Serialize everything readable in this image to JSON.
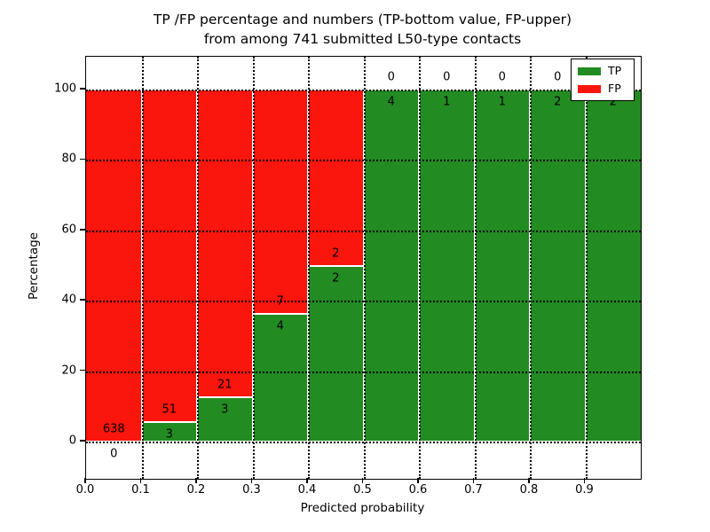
{
  "figure": {
    "title_line1": "TP /FP percentage and numbers (TP-bottom value, FP-upper)",
    "title_line2": "from among 741 submitted L50-type contacts",
    "xlabel": "Predicted probability",
    "ylabel": "Percentage"
  },
  "chart_data": {
    "type": "bar",
    "stacked": true,
    "percentage_axis": true,
    "title": "TP /FP percentage and numbers (TP-bottom value, FP-upper) from among 741 submitted L50-type contacts",
    "xlabel": "Predicted probability",
    "ylabel": "Percentage",
    "total_contacts": 741,
    "x_tick_labels": [
      "0.0",
      "0.1",
      "0.2",
      "0.3",
      "0.4",
      "0.5",
      "0.6",
      "0.7",
      "0.8",
      "0.9"
    ],
    "y_ticks": [
      0,
      20,
      40,
      60,
      80,
      100
    ],
    "xlim": [
      0.0,
      1.0
    ],
    "ylim": [
      -10.6,
      109.4
    ],
    "grid": true,
    "legend_position": "upper right",
    "colors": {
      "tp": "#228b22",
      "fp": "#fa150d"
    },
    "legend": [
      {
        "label": "TP",
        "color": "#228b22"
      },
      {
        "label": "FP",
        "color": "#fa150d"
      }
    ],
    "bins": [
      {
        "range": [
          0.0,
          0.1
        ],
        "tp": 0,
        "fp": 638,
        "tp_pct": 0.0
      },
      {
        "range": [
          0.1,
          0.2
        ],
        "tp": 3,
        "fp": 51,
        "tp_pct": 5.56
      },
      {
        "range": [
          0.2,
          0.3
        ],
        "tp": 3,
        "fp": 21,
        "tp_pct": 12.5
      },
      {
        "range": [
          0.3,
          0.4
        ],
        "tp": 4,
        "fp": 7,
        "tp_pct": 36.36
      },
      {
        "range": [
          0.4,
          0.5
        ],
        "tp": 2,
        "fp": 2,
        "tp_pct": 50.0
      },
      {
        "range": [
          0.5,
          0.6
        ],
        "tp": 4,
        "fp": 0,
        "tp_pct": 100.0
      },
      {
        "range": [
          0.6,
          0.7
        ],
        "tp": 1,
        "fp": 0,
        "tp_pct": 100.0
      },
      {
        "range": [
          0.7,
          0.8
        ],
        "tp": 1,
        "fp": 0,
        "tp_pct": 100.0
      },
      {
        "range": [
          0.8,
          0.9
        ],
        "tp": 2,
        "fp": 0,
        "tp_pct": 100.0
      },
      {
        "range": [
          0.9,
          1.0
        ],
        "tp": 2,
        "fp": 0,
        "tp_pct": 100.0
      }
    ]
  }
}
